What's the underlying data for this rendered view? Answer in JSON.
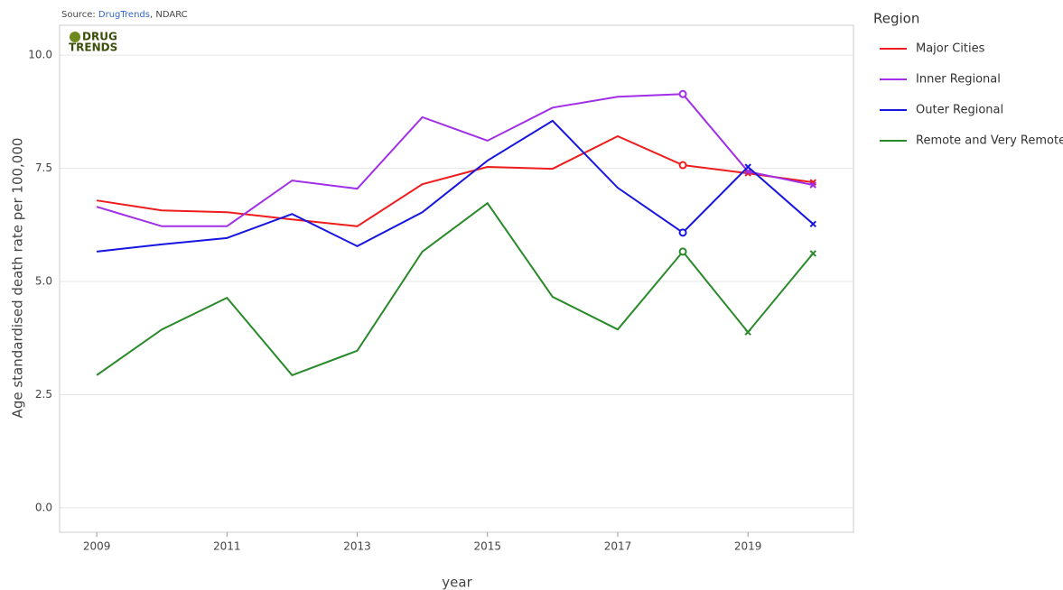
{
  "chart_data": {
    "type": "line",
    "source": [
      "Source: ",
      "DrugTrends",
      ", NDARC"
    ],
    "logo": [
      "DRUG",
      "TRENDS"
    ],
    "xlabel": "year",
    "ylabel": "Age standardised death rate per 100,000",
    "legend_title": "Region",
    "legend": "right",
    "grid": true,
    "x": [
      2009,
      2010,
      2011,
      2012,
      2013,
      2014,
      2015,
      2016,
      2017,
      2018,
      2019,
      2020
    ],
    "xlim": [
      2008.43,
      2020.62
    ],
    "xticks": [
      2009,
      2011,
      2013,
      2015,
      2017,
      2019
    ],
    "ylim": [
      -0.54,
      10.66
    ],
    "yticks": [
      {
        "value": 0,
        "label": "0.0"
      },
      2.5,
      {
        "value": 5,
        "label": "5.0"
      },
      7.5,
      {
        "value": 10,
        "label": "10.0"
      }
    ],
    "series": [
      {
        "name": "Major Cities",
        "color": "#ee1c1c",
        "values": [
          6.79,
          6.57,
          6.53,
          6.37,
          6.22,
          7.15,
          7.53,
          7.49,
          8.21,
          7.57,
          7.39,
          7.19
        ],
        "markers": [
          null,
          null,
          null,
          null,
          null,
          null,
          null,
          null,
          null,
          "circle",
          "x",
          "x"
        ]
      },
      {
        "name": "Inner Regional",
        "color": "#a12ee8",
        "values": [
          6.65,
          6.22,
          6.22,
          7.23,
          7.05,
          8.63,
          8.11,
          8.84,
          9.08,
          9.14,
          7.43,
          7.13
        ],
        "markers": [
          null,
          null,
          null,
          null,
          null,
          null,
          null,
          null,
          null,
          "circle",
          "x",
          "x"
        ]
      },
      {
        "name": "Outer Regional",
        "color": "#1616e0",
        "values": [
          5.66,
          5.82,
          5.96,
          6.49,
          5.78,
          6.53,
          7.67,
          8.55,
          7.07,
          6.08,
          7.53,
          6.27
        ],
        "markers": [
          null,
          null,
          null,
          null,
          null,
          null,
          null,
          null,
          null,
          "circle",
          "x",
          "x"
        ]
      },
      {
        "name": "Remote and Very Remote",
        "color": "#2a8a2a",
        "values": [
          2.93,
          3.94,
          4.64,
          2.93,
          3.47,
          5.66,
          6.73,
          4.66,
          3.94,
          5.66,
          3.88,
          5.62
        ],
        "markers": [
          null,
          null,
          null,
          null,
          null,
          null,
          null,
          null,
          null,
          "circle",
          "x",
          "x"
        ]
      }
    ]
  }
}
